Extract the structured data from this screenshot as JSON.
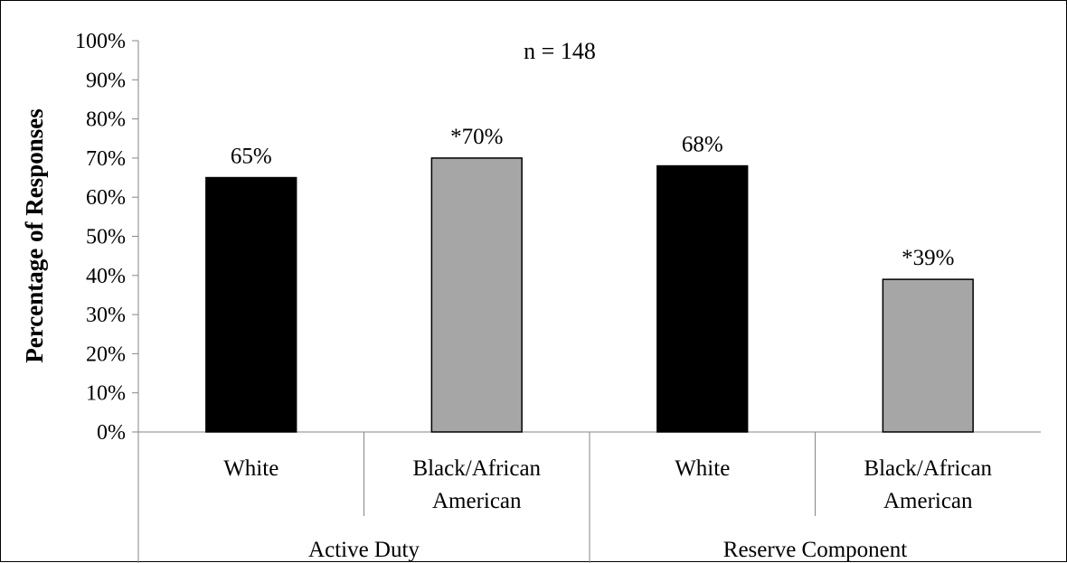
{
  "chart_data": {
    "type": "bar",
    "title": "n = 148",
    "ylabel": "Percentage of Responses",
    "xlabel": "",
    "ylim": [
      0,
      100
    ],
    "yticks": [
      "0%",
      "10%",
      "20%",
      "30%",
      "40%",
      "50%",
      "60%",
      "70%",
      "80%",
      "90%",
      "100%"
    ],
    "groups": [
      {
        "label": "Active Duty",
        "bars": [
          {
            "category": [
              "White"
            ],
            "value": 65,
            "data_label": "65%",
            "color": "#000000"
          },
          {
            "category": [
              "Black/African",
              "American"
            ],
            "value": 70,
            "data_label": "*70%",
            "color": "#a6a6a6"
          }
        ]
      },
      {
        "label": "Reserve Component",
        "bars": [
          {
            "category": [
              "White"
            ],
            "value": 68,
            "data_label": "68%",
            "color": "#000000"
          },
          {
            "category": [
              "Black/African",
              "American"
            ],
            "value": 39,
            "data_label": "*39%",
            "color": "#a6a6a6"
          }
        ]
      }
    ],
    "grid": false,
    "legend": "none"
  }
}
